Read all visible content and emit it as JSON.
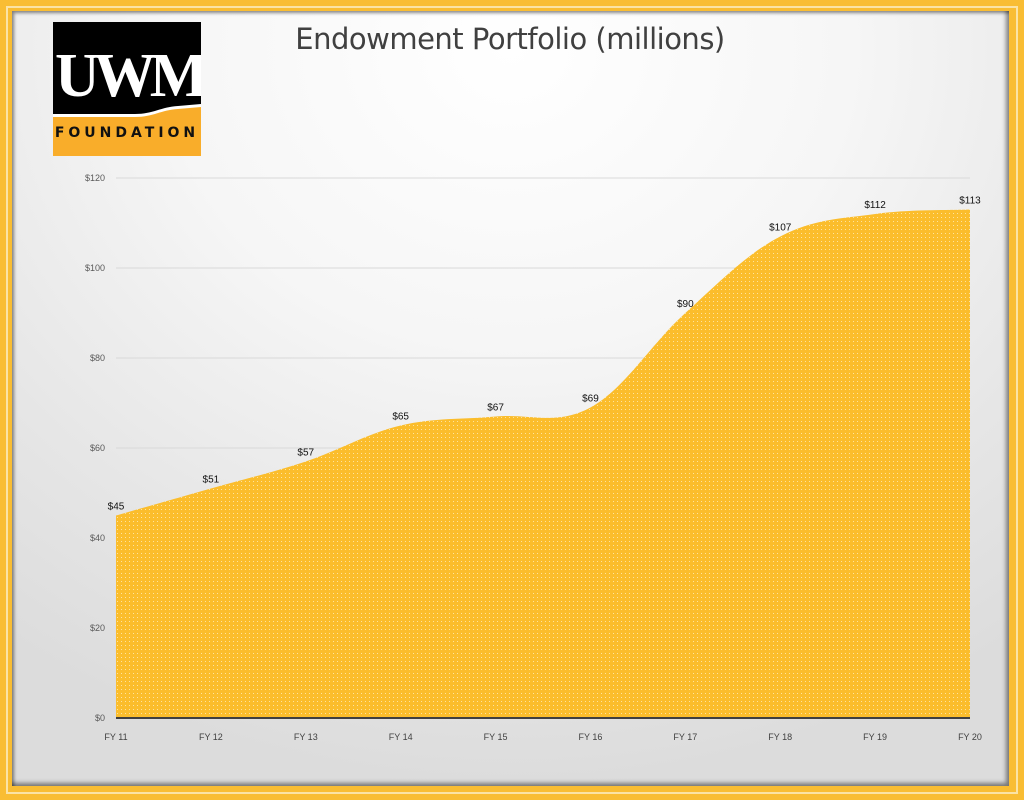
{
  "logo": {
    "letters": "UWM",
    "subtitle": "FOUNDATION"
  },
  "title": "Endowment Portfolio (millions)",
  "colors": {
    "fill": "#fbbd2c",
    "frame": "#f9bd33",
    "grid": "#d9d9d9",
    "axis": "#3f3f3f"
  },
  "chart_data": {
    "type": "area",
    "title": "Endowment Portfolio (millions)",
    "xlabel": "",
    "ylabel": "",
    "categories": [
      "FY 11",
      "FY 12",
      "FY 13",
      "FY 14",
      "FY 15",
      "FY 16",
      "FY 17",
      "FY 18",
      "FY 19",
      "FY 20"
    ],
    "values": [
      45,
      51,
      57,
      65,
      67,
      69,
      90,
      107,
      112,
      113
    ],
    "data_labels": [
      "$45",
      "$51",
      "$57",
      "$65",
      "$67",
      "$69",
      "$90",
      "$107",
      "$112",
      "$113"
    ],
    "ylim": [
      0,
      120
    ],
    "yticks": [
      0,
      20,
      40,
      60,
      80,
      100,
      120
    ],
    "ytick_labels": [
      "$0",
      "$20",
      "$40",
      "$60",
      "$80",
      "$100",
      "$120"
    ],
    "grid": true,
    "legend": "none"
  }
}
